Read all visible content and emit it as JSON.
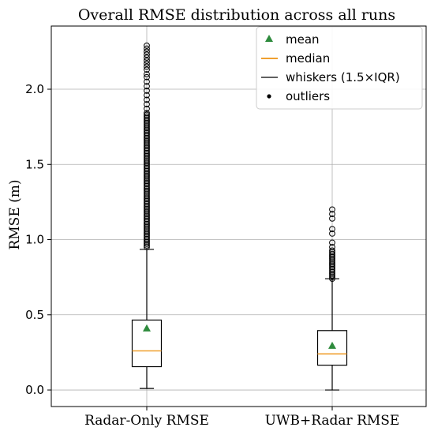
{
  "chart_data": {
    "type": "box",
    "title": "Overall RMSE distribution across all runs",
    "xlabel": "",
    "ylabel": "RMSE (m)",
    "ylim": [
      -0.11,
      2.42
    ],
    "yticks": [
      "0.0",
      "0.5",
      "1.0",
      "1.5",
      "2.0"
    ],
    "grid": true,
    "legend_position": "top-right",
    "legend": {
      "mean": "mean",
      "median": "median",
      "whiskers": "whiskers (1.5×IQR)",
      "outliers": "outliers"
    },
    "colors": {
      "mean": "#2e8b3d",
      "median": "#f0a030",
      "box": "#000000",
      "grid": "#b0b0b0"
    },
    "categories": [
      "Radar-Only RMSE",
      "UWB+Radar RMSE"
    ],
    "boxes": [
      {
        "label": "Radar-Only RMSE",
        "whisker_low": 0.01,
        "q1": 0.155,
        "median": 0.26,
        "q3": 0.465,
        "whisker_high": 0.935,
        "mean": 0.41,
        "outliers_dense_range": [
          0.95,
          1.85
        ],
        "outliers_sparse": [
          1.87,
          1.9,
          1.93,
          1.96,
          1.99,
          2.02,
          2.05,
          2.08,
          2.1,
          2.13,
          2.15,
          2.17,
          2.19,
          2.21,
          2.23,
          2.25,
          2.27,
          2.29
        ]
      },
      {
        "label": "UWB+Radar RMSE",
        "whisker_low": 0.0,
        "q1": 0.165,
        "median": 0.24,
        "q3": 0.395,
        "whisker_high": 0.74,
        "mean": 0.295,
        "outliers_dense_range": [
          0.74,
          0.93
        ],
        "outliers_sparse": [
          0.95,
          0.98,
          1.04,
          1.07,
          1.14,
          1.17,
          1.2
        ]
      }
    ]
  }
}
